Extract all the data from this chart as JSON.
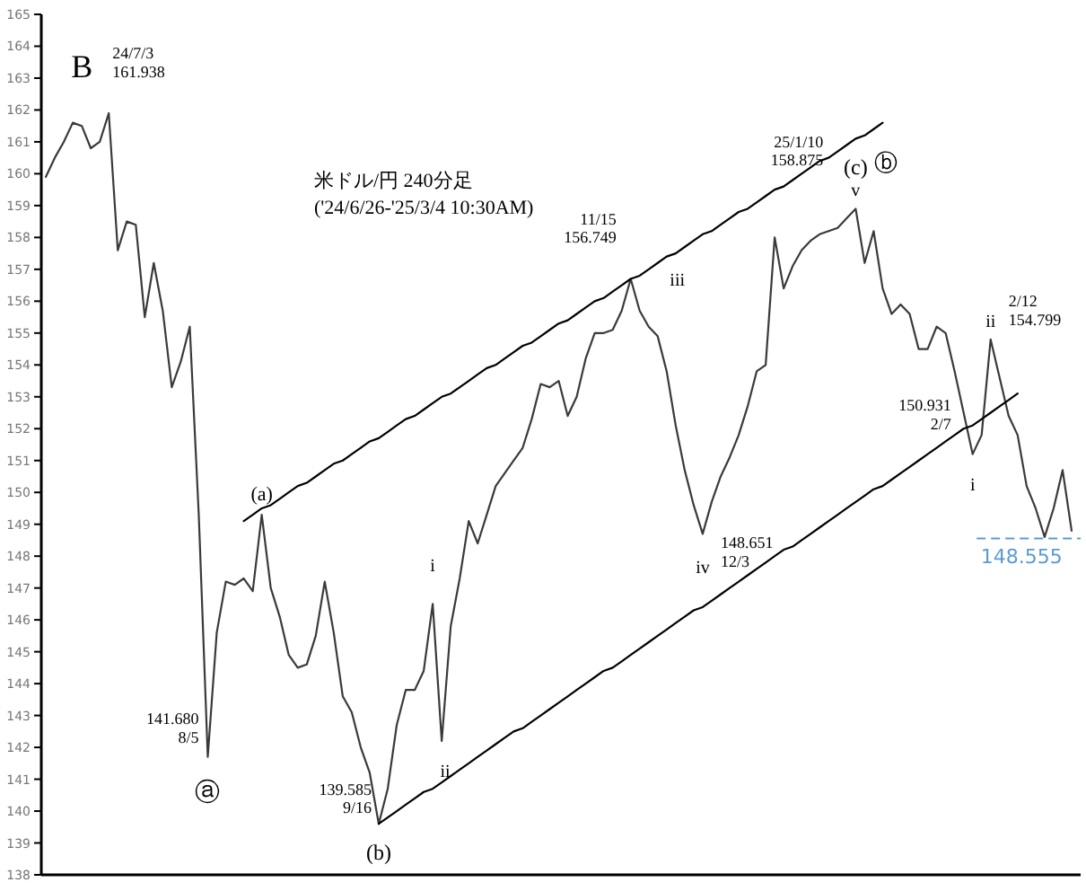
{
  "chart_data": {
    "type": "line",
    "title": "米ドル/円 240分足",
    "subtitle": "('24/6/26-'25/3/4 10:30AM)",
    "categories": [
      null,
      null,
      null,
      null,
      null,
      null,
      null,
      null,
      null,
      null,
      null,
      null,
      null,
      null,
      null,
      null,
      null,
      null,
      null,
      null,
      null,
      null,
      null,
      null,
      null,
      null,
      null,
      null,
      null,
      null,
      null,
      null,
      null,
      null,
      null,
      null,
      null,
      null,
      null,
      null,
      null,
      null,
      null,
      null,
      null,
      null,
      null,
      null,
      null,
      null,
      null,
      null,
      null,
      null,
      null,
      null,
      null,
      null,
      null,
      null,
      null,
      null,
      null,
      null,
      null,
      null,
      null,
      null,
      null,
      null,
      null,
      null,
      null,
      null,
      null,
      null,
      null,
      null,
      null,
      null,
      null,
      null,
      null,
      null,
      null,
      null,
      null,
      null,
      null,
      null,
      null,
      null,
      null,
      null,
      null,
      null,
      null,
      null,
      null,
      null,
      null,
      null,
      null,
      null,
      null,
      null,
      null,
      null,
      null,
      null,
      null,
      null,
      null,
      null,
      null
    ],
    "ylim": [
      138,
      165
    ],
    "yticks": [
      138,
      139,
      140,
      141,
      142,
      143,
      144,
      145,
      146,
      147,
      148,
      149,
      150,
      151,
      152,
      153,
      154,
      155,
      156,
      157,
      158,
      159,
      160,
      161,
      162,
      163,
      164,
      165
    ],
    "tick_labels": "y",
    "series": [
      {
        "color": "#3a3a3a",
        "values": [
          159.9,
          160.5,
          161.0,
          161.6,
          161.5,
          160.8,
          161.0,
          161.9,
          157.6,
          158.5,
          158.4,
          155.5,
          157.2,
          155.7,
          153.3,
          154.1,
          155.2,
          149.3,
          141.7,
          145.6,
          147.2,
          147.1,
          147.3,
          146.9,
          149.3,
          147.0,
          146.1,
          144.9,
          144.5,
          144.6,
          145.5,
          147.2,
          145.6,
          143.6,
          143.1,
          142.0,
          141.2,
          139.6,
          140.7,
          142.7,
          143.8,
          143.8,
          144.4,
          146.5,
          142.2,
          145.8,
          147.3,
          149.1,
          148.4,
          149.3,
          150.2,
          150.6,
          151.0,
          151.4,
          152.3,
          153.4,
          153.3,
          153.5,
          152.4,
          153.0,
          154.2,
          155.0,
          155.0,
          155.1,
          155.7,
          156.7,
          155.7,
          155.2,
          154.9,
          153.8,
          152.1,
          150.7,
          149.6,
          148.7,
          149.7,
          150.5,
          151.1,
          151.8,
          152.7,
          153.8,
          154.0,
          158.0,
          156.4,
          157.1,
          157.6,
          157.9,
          158.1,
          158.2,
          158.3,
          158.6,
          158.9,
          157.2,
          158.2,
          156.4,
          155.6,
          155.9,
          155.6,
          154.5,
          154.5,
          155.2,
          155.0,
          153.8,
          152.5,
          151.2,
          151.8,
          154.8,
          153.6,
          152.4,
          151.8,
          150.2,
          149.5,
          148.6,
          149.5,
          150.7,
          148.8
        ]
      },
      {
        "color": "#000000",
        "values": [
          null,
          null,
          null,
          null,
          null,
          null,
          null,
          null,
          null,
          null,
          null,
          null,
          null,
          null,
          null,
          null,
          null,
          null,
          null,
          null,
          null,
          null,
          149.1,
          149.3,
          149.5,
          149.6,
          149.8,
          150.0,
          150.2,
          150.3,
          150.5,
          150.7,
          150.9,
          151.0,
          151.2,
          151.4,
          151.6,
          151.7,
          151.9,
          152.1,
          152.3,
          152.4,
          152.6,
          152.8,
          153.0,
          153.1,
          153.3,
          153.5,
          153.7,
          153.9,
          154.0,
          154.2,
          154.4,
          154.6,
          154.7,
          154.9,
          155.1,
          155.3,
          155.4,
          155.6,
          155.8,
          156.0,
          156.1,
          156.3,
          156.5,
          156.7,
          156.8,
          157.0,
          157.2,
          157.4,
          157.5,
          157.7,
          157.9,
          158.1,
          158.2,
          158.4,
          158.6,
          158.8,
          158.9,
          159.1,
          159.3,
          159.5,
          159.6,
          159.8,
          160.0,
          160.2,
          160.4,
          160.5,
          160.7,
          160.9,
          161.1,
          161.2,
          161.4,
          161.6,
          null,
          null,
          null,
          null,
          null,
          null,
          null,
          null,
          null,
          null,
          null,
          null,
          null,
          null,
          null,
          null,
          null,
          null,
          null,
          null,
          null
        ]
      },
      {
        "color": "#000000",
        "values": [
          null,
          null,
          null,
          null,
          null,
          null,
          null,
          null,
          null,
          null,
          null,
          null,
          null,
          null,
          null,
          null,
          null,
          null,
          null,
          null,
          null,
          null,
          null,
          null,
          null,
          null,
          null,
          null,
          null,
          null,
          null,
          null,
          null,
          null,
          null,
          null,
          null,
          139.6,
          139.8,
          140.0,
          140.2,
          140.4,
          140.6,
          140.7,
          140.9,
          141.1,
          141.3,
          141.5,
          141.7,
          141.9,
          142.1,
          142.3,
          142.5,
          142.6,
          142.8,
          143.0,
          143.2,
          143.4,
          143.6,
          143.8,
          144.0,
          144.2,
          144.4,
          144.5,
          144.7,
          144.9,
          145.1,
          145.3,
          145.5,
          145.7,
          145.9,
          146.1,
          146.3,
          146.4,
          146.6,
          146.8,
          147.0,
          147.2,
          147.4,
          147.6,
          147.8,
          148.0,
          148.2,
          148.3,
          148.5,
          148.7,
          148.9,
          149.1,
          149.3,
          149.5,
          149.7,
          149.9,
          150.1,
          150.2,
          150.4,
          150.6,
          150.8,
          151.0,
          151.2,
          151.4,
          151.6,
          151.8,
          152.0,
          152.1,
          152.3,
          152.5,
          152.7,
          152.9,
          153.1,
          null,
          null,
          null,
          null,
          null,
          null
        ]
      }
    ],
    "ref_lines": [
      {
        "axis": "y",
        "value": 148.555,
        "label": "148.555",
        "color": "#5b9bd5",
        "line_style": "dashed"
      }
    ],
    "annotations": [
      "B",
      "24/7/3\n161.938",
      "ⓐ",
      "141.680\n8/5",
      "(a)",
      "(b)",
      "139.585\n9/16",
      "i",
      "ii",
      "11/15\n156.749",
      "iii",
      "iv",
      "148.651\n12/3",
      "ⓑ",
      "(c)",
      "v",
      "25/1/10\n158.875",
      "i",
      "150.931\n2/7",
      "ii",
      "2/12\n154.799"
    ]
  }
}
